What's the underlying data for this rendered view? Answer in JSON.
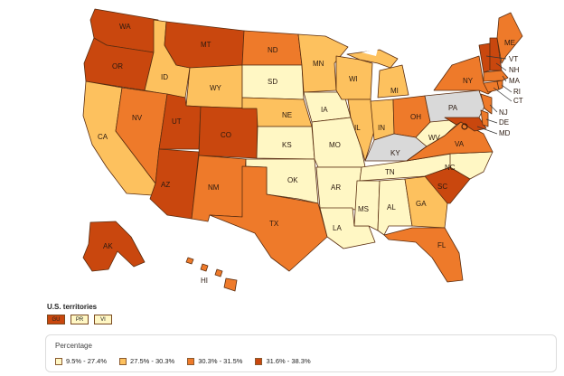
{
  "colors": {
    "bin1": "#fff7c4",
    "bin2": "#fdc15e",
    "bin3": "#ee7a2a",
    "bin4": "#c9470e",
    "nodata": "#d9d9d9"
  },
  "states": [
    {
      "abbr": "WA",
      "bin": "bin4"
    },
    {
      "abbr": "OR",
      "bin": "bin4"
    },
    {
      "abbr": "CA",
      "bin": "bin2"
    },
    {
      "abbr": "ID",
      "bin": "bin2"
    },
    {
      "abbr": "NV",
      "bin": "bin3"
    },
    {
      "abbr": "MT",
      "bin": "bin4"
    },
    {
      "abbr": "WY",
      "bin": "bin2"
    },
    {
      "abbr": "UT",
      "bin": "bin4"
    },
    {
      "abbr": "AZ",
      "bin": "bin4"
    },
    {
      "abbr": "CO",
      "bin": "bin4"
    },
    {
      "abbr": "NM",
      "bin": "bin3"
    },
    {
      "abbr": "ND",
      "bin": "bin3"
    },
    {
      "abbr": "SD",
      "bin": "bin1"
    },
    {
      "abbr": "NE",
      "bin": "bin2"
    },
    {
      "abbr": "KS",
      "bin": "bin1"
    },
    {
      "abbr": "OK",
      "bin": "bin1"
    },
    {
      "abbr": "TX",
      "bin": "bin3"
    },
    {
      "abbr": "MN",
      "bin": "bin2"
    },
    {
      "abbr": "IA",
      "bin": "bin1"
    },
    {
      "abbr": "MO",
      "bin": "bin1"
    },
    {
      "abbr": "AR",
      "bin": "bin1"
    },
    {
      "abbr": "LA",
      "bin": "bin1"
    },
    {
      "abbr": "WI",
      "bin": "bin2"
    },
    {
      "abbr": "IL",
      "bin": "bin2"
    },
    {
      "abbr": "MI",
      "bin": "bin2"
    },
    {
      "abbr": "IN",
      "bin": "bin2"
    },
    {
      "abbr": "OH",
      "bin": "bin3"
    },
    {
      "abbr": "KY",
      "bin": "nodata"
    },
    {
      "abbr": "TN",
      "bin": "bin1"
    },
    {
      "abbr": "MS",
      "bin": "bin1"
    },
    {
      "abbr": "AL",
      "bin": "bin1"
    },
    {
      "abbr": "GA",
      "bin": "bin2"
    },
    {
      "abbr": "FL",
      "bin": "bin3"
    },
    {
      "abbr": "SC",
      "bin": "bin4"
    },
    {
      "abbr": "NC",
      "bin": "bin1"
    },
    {
      "abbr": "VA",
      "bin": "bin3"
    },
    {
      "abbr": "WV",
      "bin": "bin1"
    },
    {
      "abbr": "PA",
      "bin": "nodata"
    },
    {
      "abbr": "NY",
      "bin": "bin3"
    },
    {
      "abbr": "VT",
      "bin": "bin4"
    },
    {
      "abbr": "NH",
      "bin": "bin4"
    },
    {
      "abbr": "ME",
      "bin": "bin3"
    },
    {
      "abbr": "MA",
      "bin": "bin3"
    },
    {
      "abbr": "RI",
      "bin": "bin3"
    },
    {
      "abbr": "CT",
      "bin": "bin3"
    },
    {
      "abbr": "NJ",
      "bin": "bin3"
    },
    {
      "abbr": "DE",
      "bin": "bin3"
    },
    {
      "abbr": "MD",
      "bin": "bin4"
    },
    {
      "abbr": "AK",
      "bin": "bin4"
    },
    {
      "abbr": "HI",
      "bin": "bin3"
    }
  ],
  "territories": {
    "title": "U.S. territories",
    "items": [
      {
        "label": "GU",
        "bin": "bin4"
      },
      {
        "label": "PR",
        "bin": "bin1"
      },
      {
        "label": "VI",
        "bin": "bin1"
      }
    ]
  },
  "legend": {
    "title": "Percentage",
    "items": [
      {
        "label": "9.5% - 27.4%",
        "bin": "bin1"
      },
      {
        "label": "27.5% - 30.3%",
        "bin": "bin2"
      },
      {
        "label": "30.3% - 31.5%",
        "bin": "bin3"
      },
      {
        "label": "31.6% - 38.3%",
        "bin": "bin4"
      }
    ]
  }
}
